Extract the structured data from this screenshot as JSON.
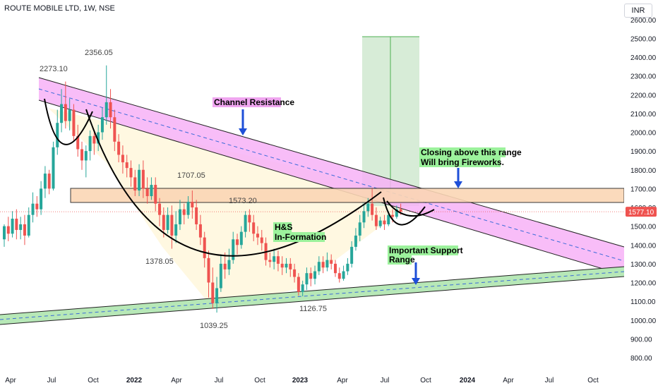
{
  "header": {
    "title": "ROUTE MOBILE LTD, 1W, NSE",
    "currency": "INR"
  },
  "chart_data": {
    "type": "candlestick",
    "symbol": "ROUTE MOBILE LTD",
    "interval": "1W",
    "exchange": "NSE",
    "currency": "INR",
    "ylim": [
      750,
      2650
    ],
    "y_ticks": [
      800,
      900,
      1000,
      1100,
      1200,
      1300,
      1400,
      1500,
      1600,
      1700,
      1800,
      1900,
      2000,
      2100,
      2200,
      2300,
      2400,
      2500,
      2600
    ],
    "y_tick_labels": [
      "800.00",
      "900.00",
      "1000.00",
      "1100.00",
      "1200.00",
      "1300.00",
      "1400.00",
      "1500.00",
      "1600.00",
      "1700.00",
      "1800.00",
      "1900.00",
      "2000.00",
      "2100.00",
      "2200.00",
      "2300.00",
      "2400.00",
      "2500.00",
      "2600.00"
    ],
    "x_ticks": [
      "Apr",
      "Jul",
      "Oct",
      "2022",
      "Apr",
      "Jul",
      "Oct",
      "2023",
      "Apr",
      "Jul",
      "Oct",
      "2024",
      "Apr",
      "Jul",
      "Oct"
    ],
    "x_bold_ticks": [
      "2022",
      "2023",
      "2024"
    ],
    "grid": false,
    "last_price": "1577.10",
    "candles": [
      [
        1430,
        1500,
        1390,
        1510
      ],
      [
        1500,
        1460,
        1420,
        1550
      ],
      [
        1460,
        1540,
        1440,
        1580
      ],
      [
        1540,
        1480,
        1430,
        1590
      ],
      [
        1480,
        1510,
        1430,
        1550
      ],
      [
        1510,
        1450,
        1400,
        1560
      ],
      [
        1450,
        1560,
        1440,
        1600
      ],
      [
        1560,
        1620,
        1520,
        1680
      ],
      [
        1620,
        1590,
        1550,
        1660
      ],
      [
        1590,
        1700,
        1560,
        1740
      ],
      [
        1700,
        1780,
        1650,
        1820
      ],
      [
        1780,
        1700,
        1670,
        1800
      ],
      [
        1700,
        1920,
        1690,
        1950
      ],
      [
        1920,
        2050,
        1880,
        2120
      ],
      [
        2050,
        2150,
        2000,
        2230
      ],
      [
        2150,
        2060,
        2020,
        2270
      ],
      [
        2060,
        2120,
        2010,
        2180
      ],
      [
        2120,
        1980,
        1950,
        2150
      ],
      [
        1980,
        1910,
        1870,
        2040
      ],
      [
        1910,
        1850,
        1800,
        1950
      ],
      [
        1850,
        1900,
        1760,
        1930
      ],
      [
        1900,
        1980,
        1850,
        2010
      ],
      [
        1980,
        1940,
        1880,
        2010
      ],
      [
        1940,
        2000,
        1900,
        2040
      ],
      [
        2000,
        2080,
        1960,
        2130
      ],
      [
        2080,
        2160,
        2040,
        2356
      ],
      [
        2160,
        2080,
        2020,
        2230
      ],
      [
        2080,
        1950,
        1900,
        2120
      ],
      [
        1950,
        1880,
        1840,
        1990
      ],
      [
        1880,
        1840,
        1780,
        1930
      ],
      [
        1840,
        1810,
        1760,
        1880
      ],
      [
        1810,
        1760,
        1710,
        1850
      ],
      [
        1760,
        1690,
        1660,
        1800
      ],
      [
        1690,
        1800,
        1660,
        1830
      ],
      [
        1800,
        1700,
        1650,
        1850
      ],
      [
        1700,
        1660,
        1620,
        1760
      ],
      [
        1660,
        1720,
        1640,
        1760
      ],
      [
        1720,
        1620,
        1580,
        1760
      ],
      [
        1620,
        1560,
        1500,
        1650
      ],
      [
        1560,
        1480,
        1440,
        1600
      ],
      [
        1480,
        1560,
        1460,
        1600
      ],
      [
        1560,
        1450,
        1380,
        1610
      ],
      [
        1450,
        1510,
        1410,
        1580
      ],
      [
        1510,
        1590,
        1480,
        1640
      ],
      [
        1590,
        1560,
        1510,
        1620
      ],
      [
        1560,
        1630,
        1540,
        1660
      ],
      [
        1630,
        1600,
        1540,
        1690
      ],
      [
        1600,
        1510,
        1480,
        1640
      ],
      [
        1510,
        1440,
        1400,
        1560
      ],
      [
        1440,
        1330,
        1280,
        1470
      ],
      [
        1330,
        1200,
        1120,
        1370
      ],
      [
        1200,
        1090,
        1060,
        1280
      ],
      [
        1090,
        1170,
        1040,
        1230
      ],
      [
        1170,
        1300,
        1150,
        1350
      ],
      [
        1300,
        1270,
        1220,
        1360
      ],
      [
        1270,
        1320,
        1240,
        1380
      ],
      [
        1320,
        1430,
        1300,
        1470
      ],
      [
        1430,
        1400,
        1350,
        1460
      ],
      [
        1400,
        1470,
        1380,
        1500
      ],
      [
        1470,
        1560,
        1440,
        1580
      ],
      [
        1560,
        1520,
        1470,
        1590
      ],
      [
        1520,
        1460,
        1420,
        1560
      ],
      [
        1460,
        1440,
        1400,
        1500
      ],
      [
        1440,
        1410,
        1370,
        1480
      ],
      [
        1410,
        1320,
        1290,
        1440
      ],
      [
        1320,
        1310,
        1280,
        1360
      ],
      [
        1310,
        1340,
        1270,
        1380
      ],
      [
        1340,
        1300,
        1260,
        1370
      ],
      [
        1300,
        1280,
        1240,
        1340
      ],
      [
        1280,
        1300,
        1250,
        1330
      ],
      [
        1300,
        1270,
        1230,
        1330
      ],
      [
        1270,
        1230,
        1200,
        1300
      ],
      [
        1230,
        1150,
        1130,
        1250
      ],
      [
        1150,
        1190,
        1127,
        1210
      ],
      [
        1190,
        1250,
        1160,
        1280
      ],
      [
        1250,
        1220,
        1180,
        1280
      ],
      [
        1220,
        1260,
        1190,
        1290
      ],
      [
        1260,
        1310,
        1240,
        1340
      ],
      [
        1310,
        1280,
        1250,
        1340
      ],
      [
        1280,
        1320,
        1260,
        1360
      ],
      [
        1320,
        1300,
        1270,
        1350
      ],
      [
        1300,
        1250,
        1230,
        1320
      ],
      [
        1250,
        1220,
        1200,
        1280
      ],
      [
        1220,
        1260,
        1210,
        1290
      ],
      [
        1260,
        1300,
        1240,
        1330
      ],
      [
        1300,
        1390,
        1280,
        1420
      ],
      [
        1390,
        1450,
        1370,
        1490
      ],
      [
        1450,
        1520,
        1420,
        1560
      ],
      [
        1520,
        1580,
        1490,
        1620
      ],
      [
        1580,
        1620,
        1550,
        1650
      ],
      [
        1620,
        1560,
        1530,
        1700
      ],
      [
        1560,
        1500,
        1480,
        1600
      ],
      [
        1500,
        1530,
        1490,
        1550
      ],
      [
        1530,
        1510,
        1480,
        1560
      ],
      [
        1510,
        1560,
        1500,
        1580
      ],
      [
        1560,
        1550,
        1520,
        1590
      ],
      [
        1550,
        1590,
        1540,
        1610
      ],
      [
        1590,
        1577,
        1560,
        1620
      ]
    ],
    "annotations": [
      {
        "text": "2273.10",
        "price": 2273.1
      },
      {
        "text": "2356.05",
        "price": 2356.05
      },
      {
        "text": "1707.05",
        "price": 1707.05
      },
      {
        "text": "1573.20",
        "price": 1573.2
      },
      {
        "text": "1378.05",
        "price": 1378.05
      },
      {
        "text": "1039.25",
        "price": 1039.25
      },
      {
        "text": "1126.75",
        "price": 1126.75
      }
    ],
    "callouts": [
      {
        "id": "channel",
        "text": "Channel Resistance",
        "bg": "#f0a6f0"
      },
      {
        "id": "hs1",
        "text": "H&S",
        "bg": "#9cf29c"
      },
      {
        "id": "hs2",
        "text": "In-Formation",
        "bg": "#9cf29c"
      },
      {
        "id": "closing1",
        "text": "Closing above this range",
        "bg": "#9cf29c"
      },
      {
        "id": "closing2",
        "text": "Will bring Fireworks.",
        "bg": "#9cf29c"
      },
      {
        "id": "support1",
        "text": "Important Support",
        "bg": "#9cf29c"
      },
      {
        "id": "support2",
        "text": "Range",
        "bg": "#9cf29c"
      }
    ],
    "colors": {
      "up": "#26a69a",
      "down": "#ef5350",
      "channel_fill": "#f7b2f7",
      "support_fill": "#b7e8b7",
      "zone_fill": "#fbd6b5",
      "triangle_fill": "#fff8e1",
      "target_fill": "#d7ecd7",
      "arrow": "#1e4fd8",
      "last_price_bg": "#ef5350"
    }
  }
}
